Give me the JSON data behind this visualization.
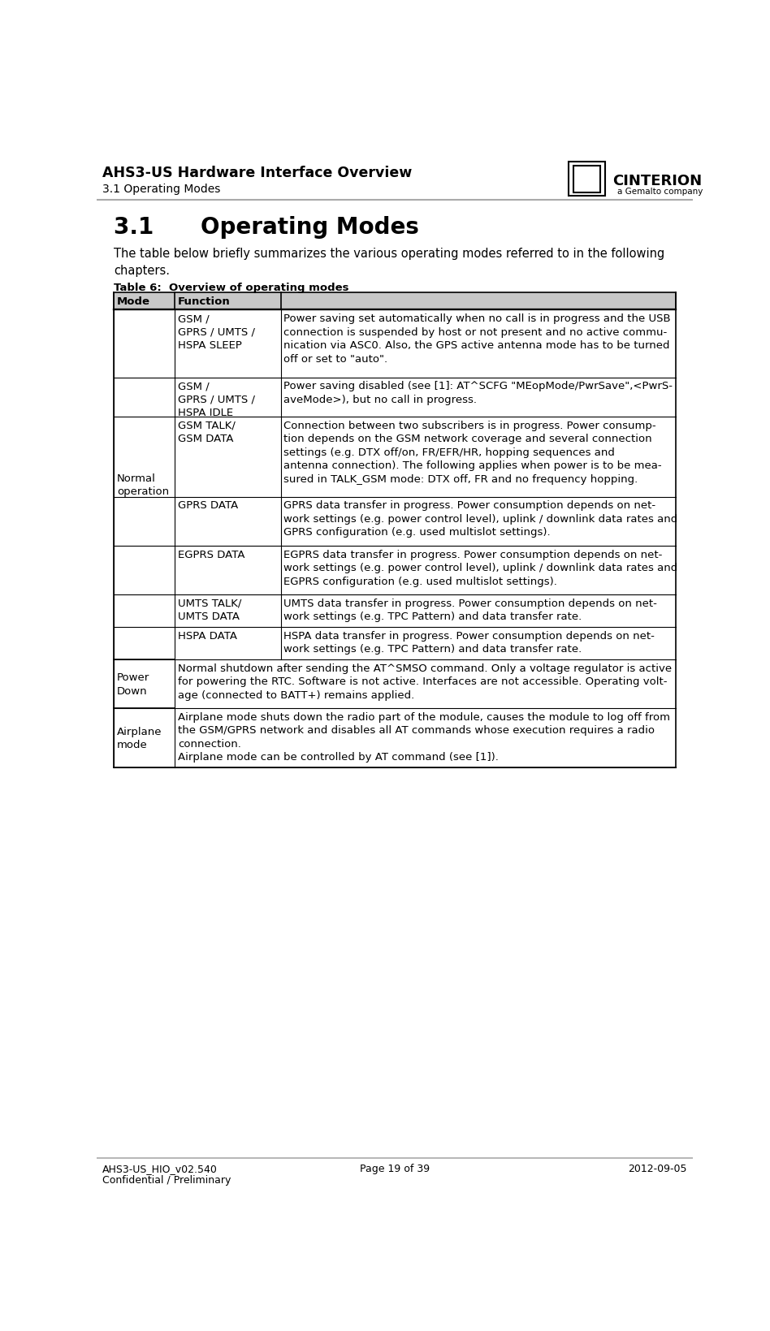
{
  "page_title": "AHS3-US Hardware Interface Overview",
  "page_subtitle": "3.1 Operating Modes",
  "section_title": "3.1      Operating Modes",
  "intro_text": "The table below briefly summarizes the various operating modes referred to in the following\nchapters.",
  "table_caption": "Table 6:  Overview of operating modes",
  "header_bg": "#c8c8c8",
  "col2_bg": "#f0f0f0",
  "rows": [
    {
      "col1": "Normal\noperation",
      "col1_span": 7,
      "col2": "GSM /\nGPRS / UMTS /\nHSPA SLEEP",
      "col3": "Power saving set automatically when no call is in progress and the USB\nconnection is suspended by host or not present and no active commu-\nnication via ASC0. Also, the GPS active antenna mode has to be turned\noff or set to \"auto\"."
    },
    {
      "col1": "",
      "col1_span": 0,
      "col2": "GSM /\nGPRS / UMTS /\nHSPA IDLE",
      "col3": "Power saving disabled (see [1]: AT^SCFG \"MEopMode/PwrSave\",<PwrS-\naveMode>), but no call in progress."
    },
    {
      "col1": "",
      "col1_span": 0,
      "col2": "GSM TALK/\nGSM DATA",
      "col3": "Connection between two subscribers is in progress. Power consump-\ntion depends on the GSM network coverage and several connection\nsettings (e.g. DTX off/on, FR/EFR/HR, hopping sequences and\nantenna connection). The following applies when power is to be mea-\nsured in TALK_GSM mode: DTX off, FR and no frequency hopping."
    },
    {
      "col1": "",
      "col1_span": 0,
      "col2": "GPRS DATA",
      "col3": "GPRS data transfer in progress. Power consumption depends on net-\nwork settings (e.g. power control level), uplink / downlink data rates and\nGPRS configuration (e.g. used multislot settings)."
    },
    {
      "col1": "",
      "col1_span": 0,
      "col2": "EGPRS DATA",
      "col3": "EGPRS data transfer in progress. Power consumption depends on net-\nwork settings (e.g. power control level), uplink / downlink data rates and\nEGPRS configuration (e.g. used multislot settings)."
    },
    {
      "col1": "",
      "col1_span": 0,
      "col2": "UMTS TALK/\nUMTS DATA",
      "col3": "UMTS data transfer in progress. Power consumption depends on net-\nwork settings (e.g. TPC Pattern) and data transfer rate."
    },
    {
      "col1": "",
      "col1_span": 0,
      "col2": "HSPA DATA",
      "col3": "HSPA data transfer in progress. Power consumption depends on net-\nwork settings (e.g. TPC Pattern) and data transfer rate."
    },
    {
      "col1": "Power\nDown",
      "col1_span": 1,
      "col2": "",
      "col3": "Normal shutdown after sending the AT^SMSO command. Only a voltage regulator is active\nfor powering the RTC. Software is not active. Interfaces are not accessible. Operating volt-\nage (connected to BATT+) remains applied."
    },
    {
      "col1": "Airplane\nmode",
      "col1_span": 1,
      "col2": "",
      "col3": "Airplane mode shuts down the radio part of the module, causes the module to log off from\nthe GSM/GPRS network and disables all AT commands whose execution requires a radio\nconnection.\nAirplane mode can be controlled by AT command (see [1])."
    }
  ],
  "footer_left1": "AHS3-US_HIO_v02.540",
  "footer_left2": "Confidential / Preliminary",
  "footer_center": "Page 19 of 39",
  "footer_right": "2012-09-05"
}
